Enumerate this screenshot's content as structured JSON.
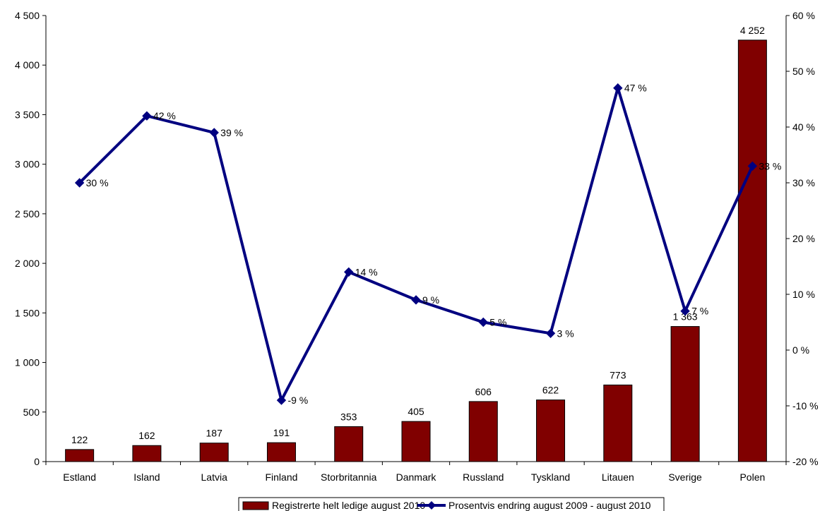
{
  "chart_data": {
    "type": "bar",
    "title": "",
    "categories": [
      "Estland",
      "Island",
      "Latvia",
      "Finland",
      "Storbritannia",
      "Danmark",
      "Russland",
      "Tyskland",
      "Litauen",
      "Sverige",
      "Polen"
    ],
    "series": [
      {
        "name": "Registrerte helt ledige august 2010",
        "type": "bar",
        "axis": "left",
        "color": "#800000",
        "values": [
          122,
          162,
          187,
          191,
          353,
          405,
          606,
          622,
          773,
          1363,
          4252
        ],
        "labels": [
          "122",
          "162",
          "187",
          "191",
          "353",
          "405",
          "606",
          "622",
          "773",
          "1 363",
          "4 252"
        ]
      },
      {
        "name": "Prosentvis endring august 2009 - august 2010",
        "type": "line",
        "axis": "right",
        "color": "#000080",
        "marker": "diamond",
        "values": [
          30,
          42,
          39,
          -9,
          14,
          9,
          5,
          3,
          47,
          7,
          33
        ],
        "labels": [
          "30 %",
          "42 %",
          "39 %",
          "-9 %",
          "14 %",
          "9 %",
          "5 %",
          "3 %",
          "47 %",
          "7 %",
          "33 %"
        ]
      }
    ],
    "y_left": {
      "range": [
        0,
        4500
      ],
      "ticks": [
        0,
        500,
        1000,
        1500,
        2000,
        2500,
        3000,
        3500,
        4000,
        4500
      ],
      "tick_labels": [
        "0",
        "500",
        "1 000",
        "1 500",
        "2 000",
        "2 500",
        "3 000",
        "3 500",
        "4 000",
        "4 500"
      ]
    },
    "y_right": {
      "range": [
        -20,
        60
      ],
      "ticks": [
        -20,
        -10,
        0,
        10,
        20,
        30,
        40,
        50,
        60
      ],
      "tick_labels": [
        "-20 %",
        "-10 %",
        "0 %",
        "10 %",
        "20 %",
        "30 %",
        "40 %",
        "50 %",
        "60 %"
      ]
    },
    "grid": false,
    "legend_position": "bottom"
  }
}
